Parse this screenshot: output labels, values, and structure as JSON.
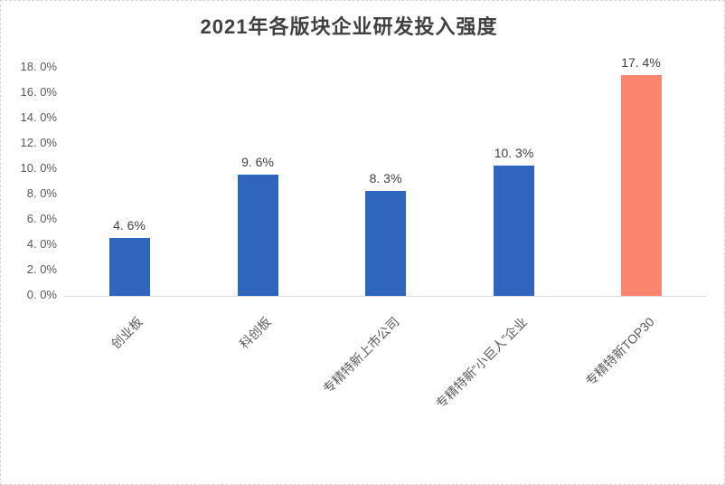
{
  "chart": {
    "title": "2021年各版块企业研发投入强度"
  },
  "chart_data": {
    "type": "bar",
    "title": "2021年各版块企业研发投入强度",
    "categories": [
      "创业板",
      "科创板",
      "专精特新上市公司",
      "专精特新“小巨人”企业",
      "专精特新TOP30"
    ],
    "values": [
      4.6,
      9.6,
      8.3,
      10.3,
      17.4
    ],
    "value_labels": [
      "4. 6%",
      "9. 6%",
      "8. 3%",
      "10. 3%",
      "17. 4%"
    ],
    "bar_colors": [
      "#2F65BC",
      "#2F65BC",
      "#2F65BC",
      "#2F65BC",
      "#FC8570"
    ],
    "xlabel": "",
    "ylabel": "",
    "ylim": [
      0,
      18
    ],
    "yticks": [
      {
        "label": "0. 0%",
        "value": 0
      },
      {
        "label": "2. 0%",
        "value": 2
      },
      {
        "label": "4. 0%",
        "value": 4
      },
      {
        "label": "6. 0%",
        "value": 6
      },
      {
        "label": "8. 0%",
        "value": 8
      },
      {
        "label": "10. 0%",
        "value": 10
      },
      {
        "label": "12. 0%",
        "value": 12
      },
      {
        "label": "14. 0%",
        "value": 14
      },
      {
        "label": "16. 0%",
        "value": 16
      },
      {
        "label": "18. 0%",
        "value": 18
      }
    ],
    "grid": false,
    "legend": false
  },
  "colors": {
    "bar_blue": "#2F65BC",
    "bar_salmon": "#FC8570",
    "axis_line": "#d9d9d9",
    "tick_text": "#595959",
    "title_text": "#404040",
    "canvas_border": "#d5d5d5"
  }
}
